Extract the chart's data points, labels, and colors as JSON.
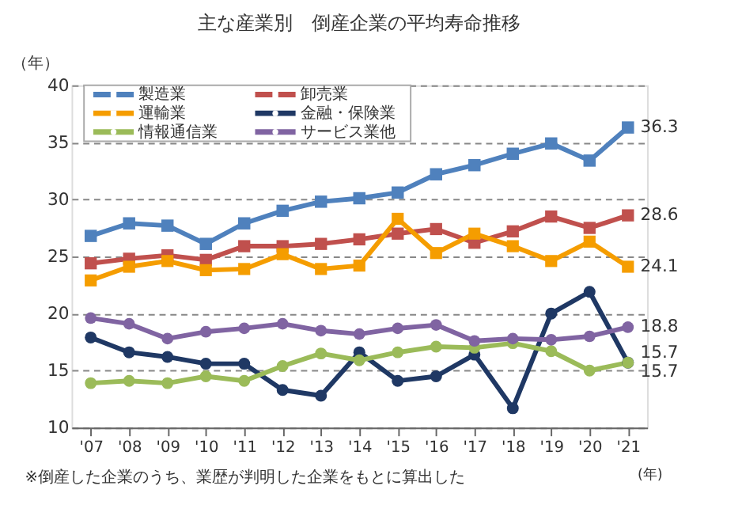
{
  "chart_data": {
    "type": "line",
    "title": "主な産業別　倒産企業の平均寿命推移",
    "ylabel": "（年）",
    "xlabel": "(年)",
    "categories": [
      "'07",
      "'08",
      "'09",
      "'10",
      "'11",
      "'12",
      "'13",
      "'14",
      "'15",
      "'16",
      "'17",
      "'18",
      "'19",
      "'20",
      "'21"
    ],
    "series": [
      {
        "name": "製造業",
        "color": "#4f81bd",
        "marker": "square",
        "values": [
          26.8,
          27.9,
          27.7,
          26.1,
          27.9,
          29.0,
          29.8,
          30.1,
          30.6,
          32.2,
          33.0,
          34.0,
          34.9,
          33.4,
          36.3
        ]
      },
      {
        "name": "卸売業",
        "color": "#c0504d",
        "marker": "square",
        "values": [
          24.4,
          24.8,
          25.1,
          24.7,
          25.9,
          25.9,
          26.1,
          26.5,
          27.0,
          27.4,
          26.2,
          27.2,
          28.5,
          27.5,
          28.6
        ]
      },
      {
        "name": "運輸業",
        "color": "#f59d00",
        "marker": "square",
        "values": [
          22.9,
          24.1,
          24.6,
          23.8,
          23.9,
          25.2,
          23.9,
          24.2,
          28.3,
          25.3,
          27.0,
          25.9,
          24.6,
          26.3,
          24.1
        ]
      },
      {
        "name": "金融・保険業",
        "color": "#1f3864",
        "marker": "circle",
        "values": [
          17.9,
          16.6,
          16.2,
          15.6,
          15.6,
          13.3,
          12.8,
          16.6,
          14.1,
          14.5,
          16.4,
          11.7,
          20.0,
          21.9,
          15.7
        ]
      },
      {
        "name": "情報通信業",
        "color": "#9bbb59",
        "marker": "circle",
        "values": [
          13.9,
          14.1,
          13.9,
          14.5,
          14.1,
          15.4,
          16.5,
          15.9,
          16.6,
          17.1,
          17.0,
          17.4,
          16.7,
          15.0,
          15.7
        ]
      },
      {
        "name": "サービス業他",
        "color": "#8064a2",
        "marker": "circle",
        "values": [
          19.6,
          19.1,
          17.8,
          18.4,
          18.7,
          19.1,
          18.5,
          18.2,
          18.7,
          19.0,
          17.6,
          17.8,
          17.7,
          18.0,
          18.8
        ]
      }
    ],
    "ylim": [
      10,
      40
    ],
    "yticks": [
      10,
      15,
      20,
      25,
      30,
      35,
      40
    ],
    "grid": "y",
    "legend": "top left",
    "line_style": "solid",
    "annotations": [
      {
        "text": "36.3",
        "x": "'21",
        "y": 36.3
      },
      {
        "text": "28.6",
        "x": "'21",
        "y": 28.6
      },
      {
        "text": "24.1",
        "x": "'21",
        "y": 24.1
      },
      {
        "text": "18.8",
        "x": "'21",
        "y": 18.8
      },
      {
        "text": "15.7",
        "x": "'21",
        "y": 15.7
      },
      {
        "text": "15.7",
        "x": "'21",
        "y": 15.7
      },
      "※倒産した企業のうち、業歴が判明した企業をもとに算出した"
    ]
  }
}
